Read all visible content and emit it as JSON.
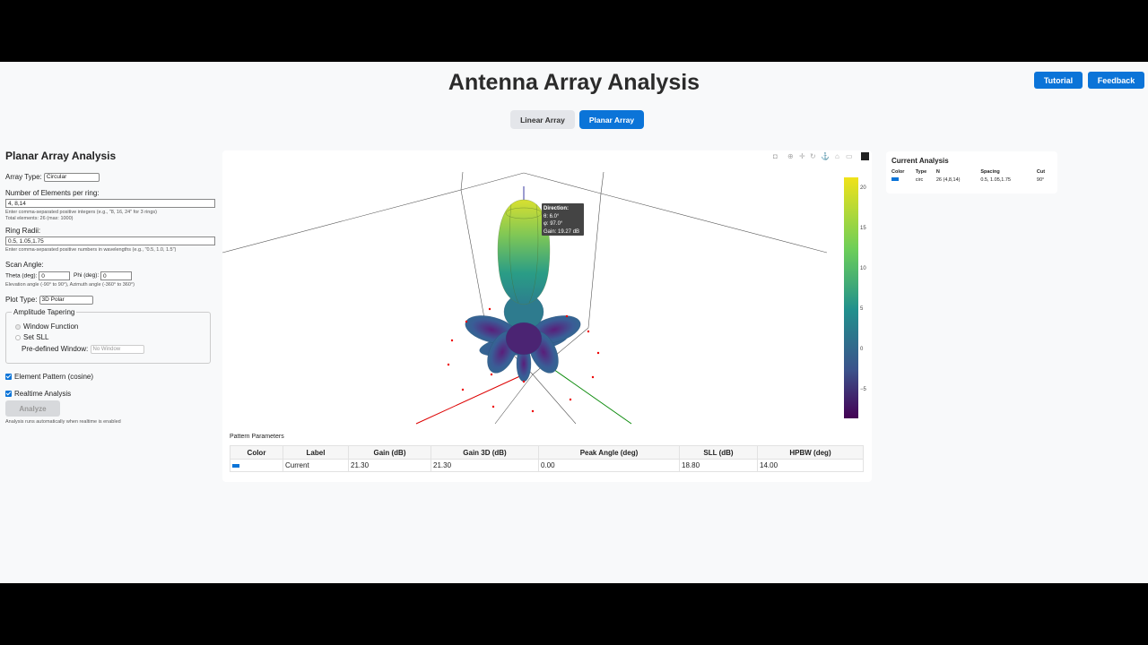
{
  "header": {
    "title": "Antenna Array Analysis",
    "tutorial_label": "Tutorial",
    "feedback_label": "Feedback"
  },
  "tabs": [
    {
      "label": "Linear Array",
      "active": false
    },
    {
      "label": "Planar Array",
      "active": true
    }
  ],
  "sidebar": {
    "heading": "Planar Array Analysis",
    "array_type_label": "Array Type:",
    "array_type_value": "Circular",
    "elements_label": "Number of Elements per ring:",
    "elements_value": "4, 8,14",
    "elements_hint": "Enter comma-separated positive integers (e.g., \"8, 16, 24\" for 3 rings)",
    "elements_total": "Total elements: 26 (max: 1000)",
    "radii_label": "Ring Radii:",
    "radii_value": "0.5, 1.05,1.75",
    "radii_hint": "Enter comma-separated positive numbers in wavelengths (e.g., \"0.5, 1.0, 1.5\")",
    "scan_label": "Scan Angle:",
    "theta_label": "Theta (deg):",
    "theta_value": "0",
    "phi_label": "Phi (deg):",
    "phi_value": "0",
    "scan_hint": "Elevation angle (-90° to 90°), Azimuth angle (-360° to 360°)",
    "plot_type_label": "Plot Type:",
    "plot_type_value": "3D Polar",
    "tapering_legend": "Amplitude Tapering",
    "window_function_label": "Window Function",
    "set_sll_label": "Set SLL",
    "predefined_label": "Pre-defined Window:",
    "predefined_value": "No Window",
    "element_pattern_label": "Element Pattern (cosine)",
    "realtime_label": "Realtime Analysis",
    "analyze_label": "Analyze",
    "analyze_hint": "Analysis runs automatically when realtime is enabled"
  },
  "plot": {
    "tooltip_title": "Direction:",
    "tooltip_theta": "θ: 6.0°",
    "tooltip_phi": "φ: 97.0°",
    "tooltip_gain": "Gain: 19.27 dB",
    "colorbar_ticks": [
      "20",
      "15",
      "10",
      "5",
      "0",
      "−5"
    ],
    "colors": {
      "high": "#f0e21a",
      "mid": "#21908d",
      "low": "#440154"
    }
  },
  "parameters": {
    "title": "Pattern Parameters",
    "headers": [
      "Color",
      "Label",
      "Gain (dB)",
      "Gain 3D (dB)",
      "Peak Angle (deg)",
      "SLL (dB)",
      "HPBW (deg)"
    ],
    "row": {
      "label": "Current",
      "gain": "21.30",
      "gain3d": "21.30",
      "peak": "0.00",
      "sll": "18.80",
      "hpbw": "14.00"
    }
  },
  "current_analysis": {
    "title": "Current Analysis",
    "headers": [
      "Color",
      "Type",
      "N",
      "Spacing",
      "Cut"
    ],
    "row": {
      "type": "circ",
      "n": "26 (4,8,14)",
      "spacing": "0.5, 1.05,1.75",
      "cut": "90°"
    }
  }
}
